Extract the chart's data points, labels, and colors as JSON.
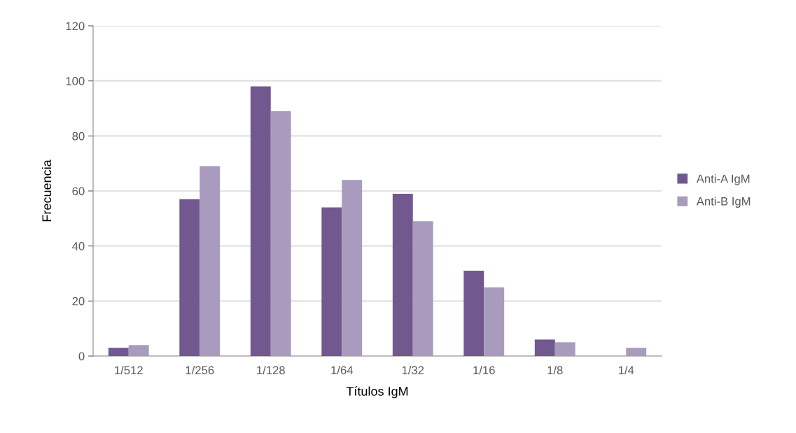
{
  "chart_data": {
    "type": "bar",
    "xlabel": "Títulos IgM",
    "ylabel": "Frecuencia",
    "categories": [
      "1/512",
      "1/256",
      "1/128",
      "1/64",
      "1/32",
      "1/16",
      "1/8",
      "1/4"
    ],
    "series": [
      {
        "name": "Anti-A IgM",
        "color": "#71588f",
        "values": [
          3,
          57,
          98,
          54,
          59,
          31,
          6,
          0
        ]
      },
      {
        "name": "Anti-B IgM",
        "color": "#a99bbd",
        "values": [
          4,
          69,
          89,
          64,
          49,
          25,
          5,
          3
        ]
      }
    ],
    "ylim": [
      0,
      120
    ],
    "yticks": [
      0,
      20,
      40,
      60,
      80,
      100,
      120
    ],
    "grid": "y",
    "legend": "right"
  }
}
